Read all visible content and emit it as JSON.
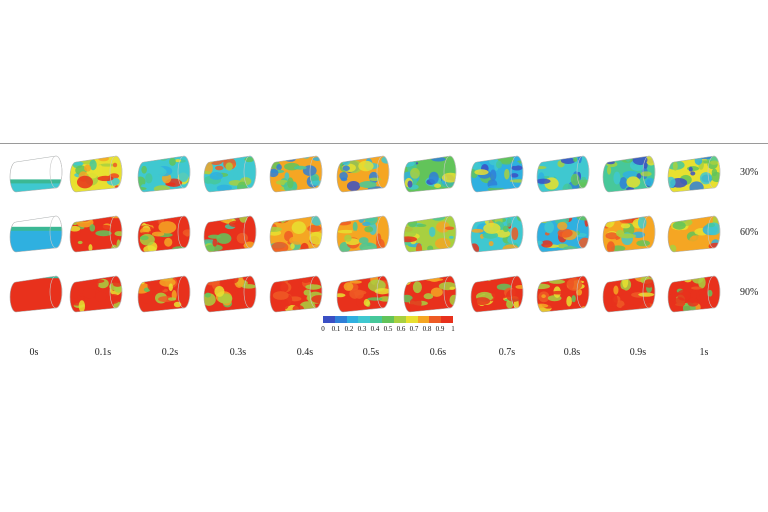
{
  "percent_labels": [
    "30%",
    "60%",
    "90%"
  ],
  "time_labels": [
    "0s",
    "0.1s",
    "0.2s",
    "0.3s",
    "0.4s",
    "0.5s",
    "0.6s",
    "0.7s",
    "0.8s",
    "0.9s",
    "1s"
  ],
  "colorbar": {
    "ticks": [
      "0",
      "0.1",
      "0.2",
      "0.3",
      "0.4",
      "0.5",
      "0.6",
      "0.7",
      "0.8",
      "0.9",
      "1"
    ],
    "colors": [
      "#3a4fc4",
      "#2f7fd8",
      "#2fb0e0",
      "#3fc8d0",
      "#47c89a",
      "#62c45a",
      "#a8d040",
      "#e8e030",
      "#f5a623",
      "#ee5a24",
      "#e8311c"
    ]
  },
  "grid_fill_levels": [
    [
      0.3,
      0.7,
      0.6,
      0.55,
      0.45,
      0.4,
      0.35,
      0.3,
      0.3,
      0.3,
      0.3
    ],
    [
      0.6,
      0.85,
      0.8,
      0.75,
      0.7,
      0.6,
      0.6,
      0.6,
      0.6,
      0.6,
      0.6
    ],
    [
      0.9,
      0.95,
      0.92,
      0.92,
      0.9,
      0.9,
      0.9,
      0.9,
      0.9,
      0.9,
      0.9
    ]
  ]
}
